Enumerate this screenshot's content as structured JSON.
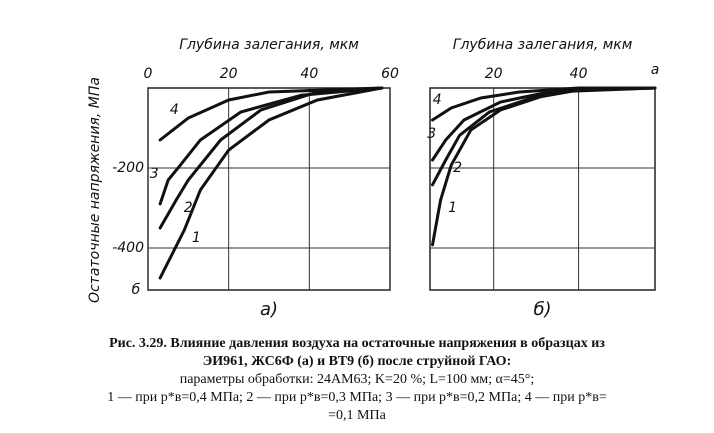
{
  "y_label": "Остаточные напряжения, МПа",
  "chart_data": [
    {
      "type": "line",
      "x_label": "Глубина залегания, мкм",
      "panel": "а)",
      "corner_note": "б",
      "xlim": [
        0,
        60
      ],
      "xticks": [
        0,
        20,
        40,
        60
      ],
      "ylim": [
        -505,
        0
      ],
      "yticks": [
        -200,
        -400
      ],
      "show_ytick_labels": true,
      "grid": true,
      "series": [
        {
          "name": "1",
          "color": "#111111",
          "x": [
            3,
            9,
            13,
            20,
            30,
            42,
            58
          ],
          "values": [
            -475,
            -355,
            -255,
            -155,
            -80,
            -30,
            0
          ]
        },
        {
          "name": "2",
          "color": "#111111",
          "x": [
            3,
            7,
            10,
            18,
            28,
            42,
            58
          ],
          "values": [
            -350,
            -280,
            -230,
            -130,
            -55,
            -10,
            0
          ]
        },
        {
          "name": "3",
          "color": "#111111",
          "x": [
            3,
            5,
            8,
            13,
            23,
            38,
            58
          ],
          "values": [
            -290,
            -230,
            -193,
            -130,
            -60,
            -18,
            0
          ]
        },
        {
          "name": "4",
          "color": "#111111",
          "x": [
            3,
            10,
            20,
            30,
            58
          ],
          "values": [
            -130,
            -75,
            -30,
            -10,
            0
          ]
        }
      ]
    },
    {
      "type": "line",
      "x_label": "Глубина залегания, мкм",
      "panel": "б)",
      "corner_note": "a",
      "xlim": [
        5,
        58
      ],
      "xticks": [
        20,
        40
      ],
      "ylim": [
        -505,
        0
      ],
      "yticks": [
        -200,
        -400
      ],
      "show_ytick_labels": false,
      "grid": true,
      "series": [
        {
          "name": "1",
          "color": "#111111",
          "x": [
            5.6,
            7.5,
            10,
            14.6,
            21.6,
            31,
            40,
            58
          ],
          "values": [
            -392,
            -280,
            -193,
            -105,
            -55,
            -22,
            -5,
            0
          ]
        },
        {
          "name": "2",
          "color": "#111111",
          "x": [
            5.6,
            8.7,
            12,
            19,
            31,
            40,
            58
          ],
          "values": [
            -242,
            -180,
            -118,
            -60,
            -18,
            -5,
            0
          ]
        },
        {
          "name": "3",
          "color": "#111111",
          "x": [
            5.6,
            8.7,
            13,
            21.6,
            33,
            58
          ],
          "values": [
            -180,
            -130,
            -80,
            -35,
            -10,
            0
          ]
        },
        {
          "name": "4",
          "color": "#111111",
          "x": [
            5.6,
            10,
            17,
            26,
            40,
            58
          ],
          "values": [
            -80,
            -50,
            -25,
            -10,
            0,
            0
          ]
        }
      ]
    }
  ],
  "caption": [
    "Рис. 3.29. Влияние давления воздуха на остаточные напряжения в образцах из",
    "ЭИ961, ЖС6Ф (а) и ВТ9 (б) после струйной ГАО:",
    "параметры обработки: 24АМ63; K=20 %; L=100 мм; α=45°;",
    "1 — при p*в=0,4 МПа; 2 — при p*в=0,3 МПа; 3 — при p*в=0,2 МПа; 4 — при p*в=",
    "=0,1 МПа"
  ]
}
